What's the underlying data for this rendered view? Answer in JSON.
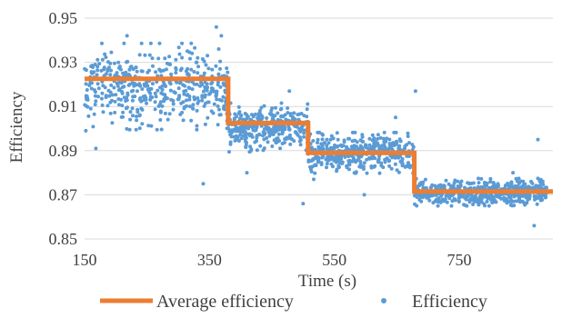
{
  "chart_data": {
    "type": "scatter",
    "xlabel": "Time (s)",
    "ylabel": "Efficiency",
    "xlim": [
      150,
      900
    ],
    "ylim": [
      0.85,
      0.95
    ],
    "x_ticks": [
      150,
      350,
      550,
      750
    ],
    "y_ticks": [
      0.85,
      0.87,
      0.89,
      0.91,
      0.93,
      0.95
    ],
    "x_tick_labels": [
      "150",
      "350",
      "550",
      "750"
    ],
    "y_tick_labels": [
      "0.85",
      "0.87",
      "0.89",
      "0.91",
      "0.93",
      "0.95"
    ],
    "grid": "horizontal",
    "legend_position": "bottom",
    "series": [
      {
        "name": "Average efficiency",
        "type": "step-line",
        "color": "#ED7D31",
        "x": [
          150,
          380,
          380,
          508,
          508,
          678,
          678,
          900
        ],
        "y": [
          0.9225,
          0.9225,
          0.9025,
          0.9025,
          0.889,
          0.889,
          0.8715,
          0.8715
        ]
      },
      {
        "name": "Efficiency",
        "type": "scatter",
        "color": "#5B9BD5",
        "segments": [
          {
            "x_range": [
              150,
              380
            ],
            "mean": 0.919,
            "spread": 0.0085,
            "count": 470
          },
          {
            "x_range": [
              380,
              508
            ],
            "mean": 0.9005,
            "spread": 0.0048,
            "count": 330
          },
          {
            "x_range": [
              508,
              678
            ],
            "mean": 0.889,
            "spread": 0.004,
            "count": 430
          },
          {
            "x_range": [
              678,
              890
            ],
            "mean": 0.8712,
            "spread": 0.0027,
            "count": 540
          }
        ],
        "outliers": [
          {
            "x": 152,
            "y": 0.899
          },
          {
            "x": 168,
            "y": 0.891
          },
          {
            "x": 218,
            "y": 0.942
          },
          {
            "x": 340,
            "y": 0.875
          },
          {
            "x": 361,
            "y": 0.946
          },
          {
            "x": 369,
            "y": 0.942
          },
          {
            "x": 356,
            "y": 0.907
          },
          {
            "x": 410,
            "y": 0.88
          },
          {
            "x": 478,
            "y": 0.917
          },
          {
            "x": 500,
            "y": 0.866
          },
          {
            "x": 517,
            "y": 0.877
          },
          {
            "x": 598,
            "y": 0.87
          },
          {
            "x": 648,
            "y": 0.905
          },
          {
            "x": 680,
            "y": 0.917
          },
          {
            "x": 870,
            "y": 0.856
          },
          {
            "x": 876,
            "y": 0.895
          },
          {
            "x": 836,
            "y": 0.88
          }
        ]
      }
    ]
  }
}
